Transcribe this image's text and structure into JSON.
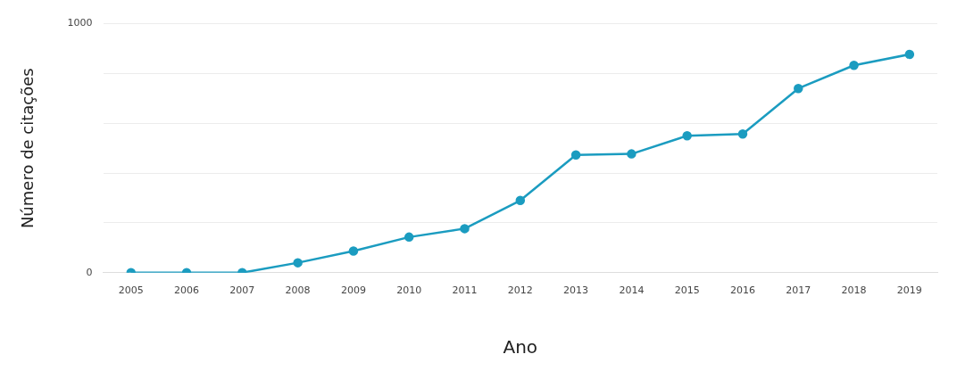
{
  "chart_data": {
    "type": "line",
    "xlabel": "Ano",
    "ylabel": "Número de citações",
    "categories": [
      "2005",
      "2006",
      "2007",
      "2008",
      "2009",
      "2010",
      "2011",
      "2012",
      "2013",
      "2014",
      "2015",
      "2016",
      "2017",
      "2018",
      "2019"
    ],
    "series": [
      {
        "color": "#1b9cc0",
        "values": [
          0,
          0,
          0,
          40,
          87,
          143,
          177,
          290,
          473,
          477,
          550,
          557,
          740,
          833,
          877
        ]
      }
    ],
    "ylim": [
      0,
      1000
    ],
    "yticks": [
      0,
      {
        "value": 200,
        "label": null
      },
      {
        "value": 400,
        "label": null
      },
      {
        "value": 600,
        "label": null
      },
      {
        "value": 800,
        "label": null
      },
      1000
    ],
    "grid": "y",
    "legend": false,
    "marker": "circle",
    "line_style": "solid"
  }
}
